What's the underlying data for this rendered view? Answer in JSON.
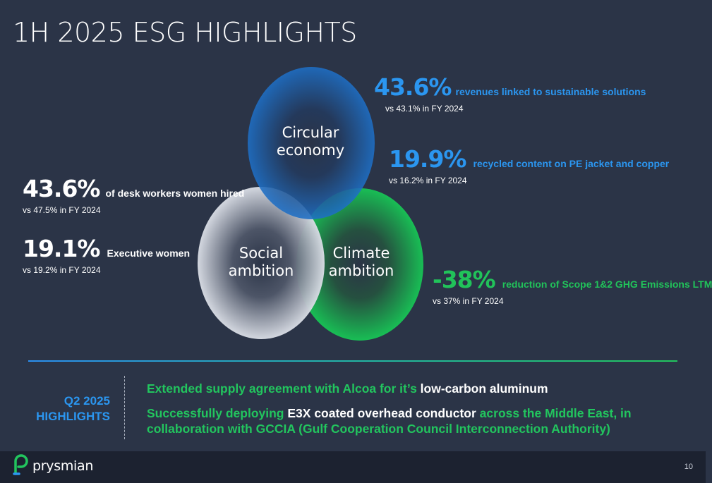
{
  "title": "1H 2025 ESG HIGHLIGHTS",
  "circles": {
    "circular": "Circular\neconomy",
    "social": "Social\nambition",
    "climate": "Climate\nambition"
  },
  "metrics": {
    "revenues": {
      "value": "43.6%",
      "desc": "revenues linked to sustainable solutions",
      "sub": "vs 43.1% in FY 2024"
    },
    "recycled": {
      "value": "19.9%",
      "desc": "recycled content on PE jacket and copper",
      "sub": "vs 16.2% in FY 2024"
    },
    "women_hired": {
      "value": "43.6%",
      "desc": "of desk workers women hired",
      "sub": "vs 47.5% in FY 2024"
    },
    "exec_women": {
      "value": "19.1%",
      "desc": "Executive women",
      "sub": "vs 19.2% in FY 2024"
    },
    "emissions": {
      "value": "-38%",
      "desc": "reduction of Scope 1&2 GHG Emissions LTM",
      "sub": "vs 37% in FY 2024"
    }
  },
  "q2": {
    "line1": "Q2 2025",
    "line2": "HIGHLIGHTS"
  },
  "highlights": {
    "h1_a": "Extended supply agreement with Alcoa for it’s ",
    "h1_b": "low-carbon aluminum",
    "h2_a": "Successfully deploying ",
    "h2_b": "E3X coated overhead conductor",
    "h2_c": " across the Middle East, in collaboration with GCCIA (Gulf Cooperation Council Interconnection Authority)"
  },
  "footer": {
    "logo": "prysmian",
    "page": "10"
  },
  "colors": {
    "background": "#2b3447",
    "blue": "#2b96f0",
    "green": "#21c35a",
    "footer": "#1c2230"
  }
}
